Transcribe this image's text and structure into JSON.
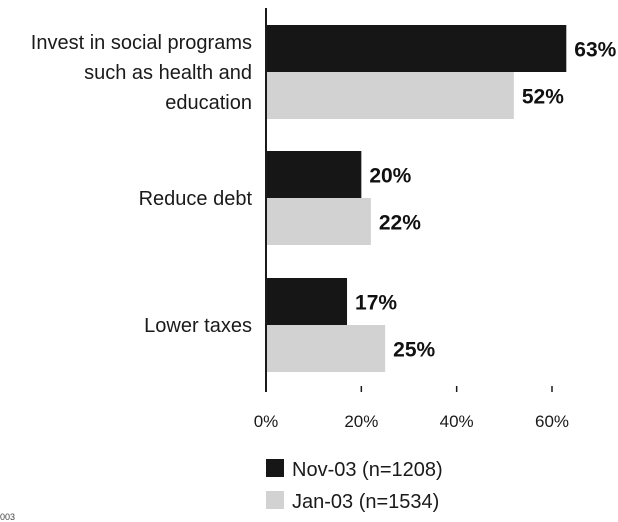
{
  "chart_data": {
    "type": "bar",
    "orientation": "horizontal",
    "categories": [
      "Invest in social programs such as health and education",
      "Reduce debt",
      "Lower taxes"
    ],
    "category_label_lines": [
      [
        "Invest in social programs",
        "such as health and",
        "education"
      ],
      [
        "Reduce debt"
      ],
      [
        "Lower taxes"
      ]
    ],
    "series": [
      {
        "name": "Nov-03 (n=1208)",
        "values": [
          63,
          20,
          17
        ],
        "labels": [
          "63%",
          "20%",
          "17%"
        ],
        "color": "#161616"
      },
      {
        "name": "Jan-03 (n=1534)",
        "values": [
          52,
          22,
          25
        ],
        "labels": [
          "52%",
          "22%",
          "25%"
        ],
        "color": "#d2d2d2"
      }
    ],
    "xlim": [
      0,
      60
    ],
    "xticks": [
      0,
      20,
      40,
      60
    ],
    "xtick_labels": [
      "0%",
      "20%",
      "40%",
      "60%"
    ],
    "grid": false,
    "legend_position": "bottom",
    "stray_text": "003"
  }
}
